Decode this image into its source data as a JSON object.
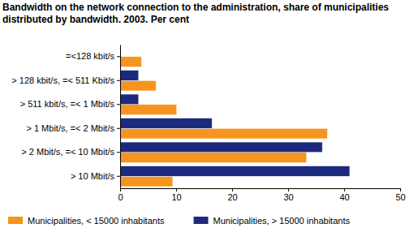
{
  "chart_data": {
    "type": "bar",
    "orientation": "horizontal",
    "title": "Bandwidth on the network connection to the administration, share of municipalities distributed by bandwidth. 2003. Per cent",
    "categories": [
      "=<128 kbit/s",
      "> 128 kbit/s, =< 511 Kbit/s",
      "> 511 kbit/s, =< 1 Mbit/s",
      "> 1 Mbit/s, =< 2 Mbit/s",
      "> 2 Mbit/s, =< 10 Mbit/s",
      "> 10 Mbit/s"
    ],
    "series": [
      {
        "name": "Municipalities, < 15000 inhabitants",
        "color": "#f7941d",
        "values": [
          3.8,
          6.4,
          10.1,
          37.0,
          33.3,
          9.4
        ]
      },
      {
        "name": "Municipalities, > 15000 inhabitants",
        "color": "#1c2a7e",
        "values": [
          0,
          3.3,
          3.3,
          16.4,
          36.1,
          41.0
        ]
      }
    ],
    "xlim": [
      0,
      50
    ],
    "xticks": [
      0,
      10,
      20,
      30,
      40,
      50
    ],
    "grid": false,
    "legend": "bottom"
  }
}
